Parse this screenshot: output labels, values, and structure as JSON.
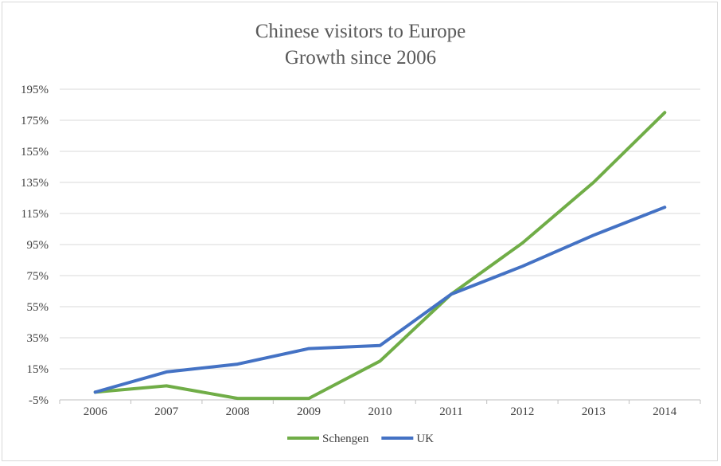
{
  "chart_data": {
    "type": "line",
    "title": "Chinese visitors to Europe",
    "subtitle": "Growth since 2006",
    "xlabel": "",
    "ylabel": "",
    "categories": [
      "2006",
      "2007",
      "2008",
      "2009",
      "2010",
      "2011",
      "2012",
      "2013",
      "2014"
    ],
    "series": [
      {
        "name": "Schengen",
        "color": "#70ad47",
        "values": [
          0,
          4,
          -4,
          -4,
          20,
          63,
          96,
          135,
          180
        ]
      },
      {
        "name": "UK",
        "color": "#4472c4",
        "values": [
          0,
          13,
          18,
          28,
          30,
          63,
          81,
          101,
          119
        ]
      }
    ],
    "yticks": [
      -5,
      15,
      35,
      55,
      75,
      95,
      115,
      135,
      155,
      175,
      195
    ],
    "ytick_labels": [
      "-5%",
      "15%",
      "35%",
      "55%",
      "75%",
      "95%",
      "115%",
      "135%",
      "155%",
      "175%",
      "195%"
    ],
    "ylim": [
      -5,
      195
    ],
    "grid": true,
    "legend": "bottom"
  }
}
